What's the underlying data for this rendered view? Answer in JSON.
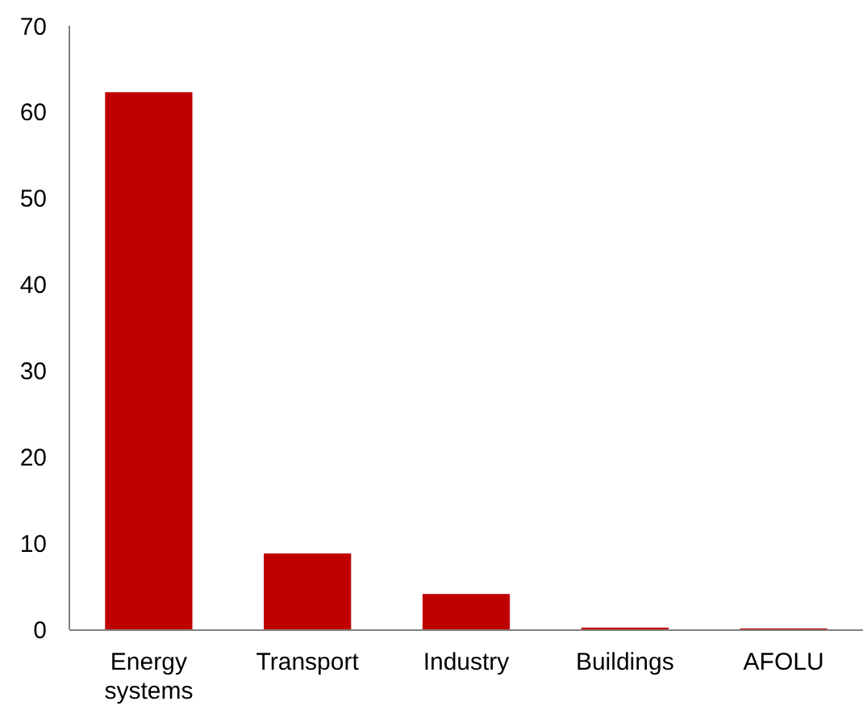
{
  "chart_data": {
    "type": "bar",
    "categories": [
      "Energy systems",
      "Transport",
      "Industry",
      "Buildings",
      "AFOLU"
    ],
    "values": [
      62.3,
      8.8,
      4.1,
      0.2,
      0.1
    ],
    "color": "#c00000",
    "ylim": [
      0,
      70
    ],
    "yticks": [
      0,
      10,
      20,
      30,
      40,
      50,
      60,
      70
    ],
    "grid": false
  }
}
